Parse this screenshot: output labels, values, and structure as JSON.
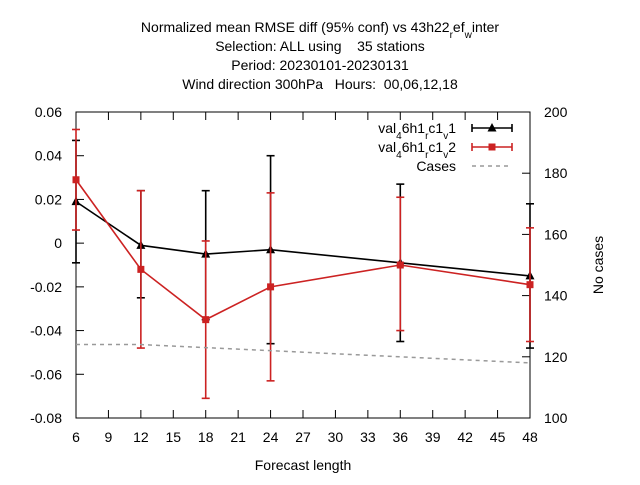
{
  "chart_data": {
    "type": "line",
    "title_lines": [
      "Normalized mean RMSE diff (95% conf) vs 43h22_ref_winter",
      "Selection: ALL using    35 stations",
      "Period: 20230101-20230131",
      "Wind direction 300hPa   Hours:  00,06,12,18"
    ],
    "xlabel": "Forecast length",
    "ylabel": "",
    "y2label": "No cases",
    "xlim": [
      6,
      48
    ],
    "ylim": [
      -0.08,
      0.06
    ],
    "y2lim": [
      100,
      200
    ],
    "xticks": [
      "6",
      "9",
      "12",
      "15",
      "18",
      "21",
      "24",
      "27",
      "30",
      "33",
      "36",
      "39",
      "42",
      "45",
      "48"
    ],
    "yticks": [
      "0.06",
      "0.04",
      "0.02",
      "0",
      "-0.02",
      "-0.04",
      "-0.06",
      "-0.08"
    ],
    "y2ticks": [
      "200",
      "180",
      "160",
      "140",
      "120",
      "100"
    ],
    "x": [
      6,
      12,
      18,
      24,
      36,
      48
    ],
    "series": [
      {
        "name": "val_46h1_rc1_v1",
        "color": "#000000",
        "marker": "triangle",
        "values": [
          0.019,
          -0.001,
          -0.005,
          -0.003,
          -0.009,
          -0.015
        ],
        "err_low": [
          -0.009,
          -0.025,
          -0.035,
          -0.046,
          -0.045,
          -0.048
        ],
        "err_high": [
          0.047,
          0.024,
          0.024,
          0.04,
          0.027,
          0.018
        ]
      },
      {
        "name": "val_46h1_rc1_v2",
        "color": "#cc2222",
        "marker": "square",
        "values": [
          0.029,
          -0.012,
          -0.035,
          -0.02,
          -0.01,
          -0.019
        ],
        "err_low": [
          0.006,
          -0.048,
          -0.071,
          -0.063,
          -0.04,
          -0.045
        ],
        "err_high": [
          0.052,
          0.024,
          0.001,
          0.023,
          0.021,
          0.007
        ]
      },
      {
        "name": "Cases",
        "color": "#999999",
        "axis": "y2",
        "dashed": true,
        "values": [
          124,
          124,
          123,
          122,
          120,
          118
        ]
      }
    ],
    "legend": {
      "position": "top-right",
      "entries": [
        {
          "pre": "val",
          "sub1": "4",
          "mid1": "6h1",
          "sub2": "r",
          "mid2": "c1",
          "sub3": "v",
          "post": "1"
        },
        {
          "pre": "val",
          "sub1": "4",
          "mid1": "6h1",
          "sub2": "r",
          "mid2": "c1",
          "sub3": "v",
          "post": "2"
        },
        {
          "pre": "Cases"
        }
      ]
    },
    "grid": false
  }
}
